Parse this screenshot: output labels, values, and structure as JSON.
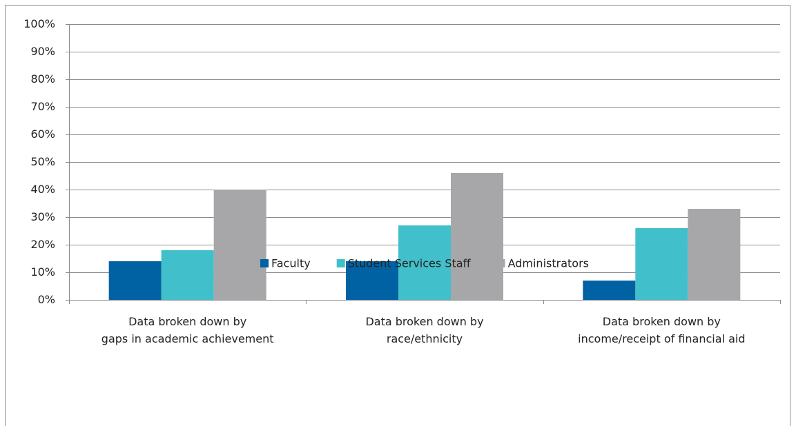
{
  "chart_data": {
    "type": "bar",
    "categories": [
      "Data broken down by\ngaps in academic achievement",
      "Data broken down by\nrace/ethnicity",
      "Data broken down by\nincome/receipt of financial aid"
    ],
    "series": [
      {
        "name": "Faculty",
        "color": "#0062a3",
        "values": [
          14,
          14,
          7
        ]
      },
      {
        "name": "Student Services Staff",
        "color": "#41bfca",
        "values": [
          18,
          27,
          26
        ]
      },
      {
        "name": "Administrators",
        "color": "#a7a7a9",
        "values": [
          40,
          46,
          33
        ]
      }
    ],
    "ylim": [
      0,
      100
    ],
    "yticks": [
      {
        "value": 0,
        "label": "0%"
      },
      {
        "value": 10,
        "label": "10%"
      },
      {
        "value": 20,
        "label": "20%"
      },
      {
        "value": 30,
        "label": "30%"
      },
      {
        "value": 40,
        "label": "40%"
      },
      {
        "value": 50,
        "label": "50%"
      },
      {
        "value": 60,
        "label": "60%"
      },
      {
        "value": 70,
        "label": "70%"
      },
      {
        "value": 80,
        "label": "80%"
      },
      {
        "value": 90,
        "label": "90%"
      },
      {
        "value": 100,
        "label": "100%"
      }
    ],
    "grid": true,
    "legend": "bottom"
  }
}
